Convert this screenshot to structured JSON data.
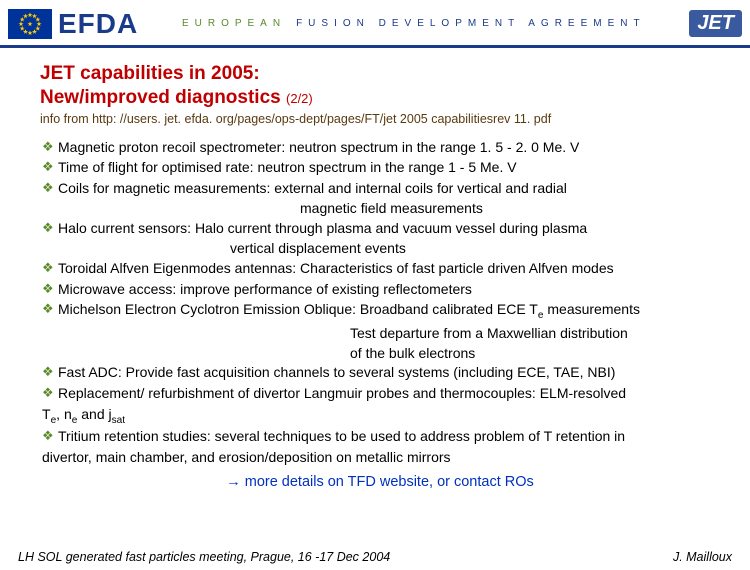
{
  "colors": {
    "efda_blue": "#1a3a8a",
    "efda_green": "#5a8a28",
    "title_red": "#c00000",
    "brown": "#5a3a10",
    "link_blue": "#0030c0",
    "jet_bg": "#3a5aa0",
    "jet_fg": "#ffffff",
    "eu_bg": "#003399",
    "eu_star": "#ffcc00",
    "rule": "#1a3a8a"
  },
  "header": {
    "efda": "EFDA",
    "mid_green": "EUROPEAN",
    "mid_blue": "FUSION   DEVELOPMENT   AGREEMENT",
    "jet": "JET"
  },
  "title": {
    "line1": "JET capabilities in 2005:",
    "line2": "New/improved diagnostics",
    "page": "(2/2)"
  },
  "info": "info from http: //users. jet. efda. org/pages/ops-dept/pages/FT/jet 2005 capabilitiesrev 11. pdf",
  "items": [
    {
      "lead": "Magnetic proton recoil spectrometer: neutron spectrum in the range 1. 5 - 2. 0 Me. V"
    },
    {
      "lead": "Time of flight for optimised rate: neutron spectrum in the range 1 - 5 Me. V"
    },
    {
      "lead": "Coils for magnetic measurements:       external and internal coils for vertical and radial",
      "sub": "magnetic field measurements",
      "subclass": "subline"
    },
    {
      "lead": "Halo current sensors:           Halo current through plasma and vacuum vessel during plasma",
      "sub": "vertical displacement events",
      "subclass": "subline2"
    },
    {
      "lead": "Toroidal Alfven Eigenmodes antennas: Characteristics of fast particle driven Alfven modes"
    },
    {
      "lead": "Microwave access: improve performance of existing reflectometers"
    },
    {
      "lead": "Michelson Electron Cyclotron Emission Oblique: Broadband calibrated ECE T<sub>e</sub> measurements",
      "sub": "Test departure from a Maxwellian distribution",
      "subclass": "subline3",
      "sub2": "of the bulk electrons"
    },
    {
      "lead": "Fast ADC: Provide fast acquisition channels to several systems (including ECE, TAE, NBI)"
    },
    {
      "lead": "Replacement/ refurbishment of divertor Langmuir probes and thermocouples: ELM-resolved",
      "cont": "T<sub>e</sub>, n<sub>e</sub> and j<sub>sat</sub>"
    },
    {
      "lead": "Tritium retention studies: several techniques to be used to address problem of T retention in",
      "cont": "divertor, main chamber, and erosion/deposition on metallic mirrors"
    }
  ],
  "more": "more details on TFD website, or contact ROs",
  "footer": {
    "left": "LH SOL generated fast particles meeting, Prague, 16 -17 Dec 2004",
    "right": "J. Mailloux"
  }
}
